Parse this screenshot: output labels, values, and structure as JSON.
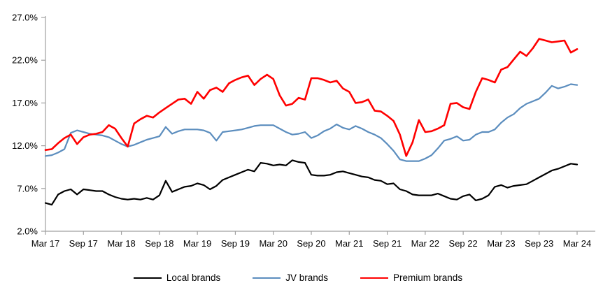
{
  "chart_data": {
    "type": "line",
    "title": "",
    "xlabel": "",
    "ylabel": "",
    "grid": false,
    "legend_position": "bottom",
    "ylim": [
      2.0,
      27.0
    ],
    "y_tick_step": 5.0,
    "y_tick_labels": [
      "2.0%",
      "7.0%",
      "12.0%",
      "17.0%",
      "22.0%",
      "27.0%"
    ],
    "x_tick_labels": [
      "Mar 17",
      "Sep 17",
      "Mar 18",
      "Sep 18",
      "Mar 19",
      "Sep 19",
      "Mar 20",
      "Sep 20",
      "Mar 21",
      "Sep 21",
      "Mar 22",
      "Sep 22",
      "Mar 23",
      "Sep 23",
      "Mar 24"
    ],
    "x_tick_every_n_points": 6,
    "x": [
      "Mar-17",
      "Apr-17",
      "May-17",
      "Jun-17",
      "Jul-17",
      "Aug-17",
      "Sep-17",
      "Oct-17",
      "Nov-17",
      "Dec-17",
      "Jan-18",
      "Feb-18",
      "Mar-18",
      "Apr-18",
      "May-18",
      "Jun-18",
      "Jul-18",
      "Aug-18",
      "Sep-18",
      "Oct-18",
      "Nov-18",
      "Dec-18",
      "Jan-19",
      "Feb-19",
      "Mar-19",
      "Apr-19",
      "May-19",
      "Jun-19",
      "Jul-19",
      "Aug-19",
      "Sep-19",
      "Oct-19",
      "Nov-19",
      "Dec-19",
      "Jan-20",
      "Feb-20",
      "Mar-20",
      "Apr-20",
      "May-20",
      "Jun-20",
      "Jul-20",
      "Aug-20",
      "Sep-20",
      "Oct-20",
      "Nov-20",
      "Dec-20",
      "Jan-21",
      "Feb-21",
      "Mar-21",
      "Apr-21",
      "May-21",
      "Jun-21",
      "Jul-21",
      "Aug-21",
      "Sep-21",
      "Oct-21",
      "Nov-21",
      "Dec-21",
      "Jan-22",
      "Feb-22",
      "Mar-22",
      "Apr-22",
      "May-22",
      "Jun-22",
      "Jul-22",
      "Aug-22",
      "Sep-22",
      "Oct-22",
      "Nov-22",
      "Dec-22",
      "Jan-23",
      "Feb-23",
      "Mar-23",
      "Apr-23",
      "May-23",
      "Jun-23",
      "Jul-23",
      "Aug-23",
      "Sep-23",
      "Oct-23",
      "Nov-23",
      "Dec-23",
      "Jan-24",
      "Feb-24",
      "Mar-24"
    ],
    "unit": "percent",
    "axis_color": "#a0a0a0",
    "series": [
      {
        "name": "Local brands",
        "color": "#000000",
        "stroke_width": 2.2,
        "values": [
          5.3,
          5.1,
          6.3,
          6.7,
          6.9,
          6.3,
          6.9,
          6.8,
          6.7,
          6.7,
          6.3,
          6.0,
          5.8,
          5.7,
          5.8,
          5.7,
          5.9,
          5.7,
          6.2,
          7.9,
          6.6,
          6.9,
          7.2,
          7.3,
          7.6,
          7.4,
          6.9,
          7.3,
          8.0,
          8.3,
          8.6,
          8.9,
          9.2,
          9.0,
          10.0,
          9.9,
          9.7,
          9.8,
          9.7,
          10.3,
          10.1,
          10.0,
          8.6,
          8.5,
          8.5,
          8.6,
          8.9,
          9.0,
          8.8,
          8.6,
          8.4,
          8.3,
          8.0,
          7.9,
          7.5,
          7.6,
          6.9,
          6.7,
          6.3,
          6.2,
          6.2,
          6.2,
          6.4,
          6.1,
          5.8,
          5.7,
          6.1,
          6.3,
          5.6,
          5.8,
          6.2,
          7.2,
          7.4,
          7.1,
          7.3,
          7.4,
          7.5,
          7.9,
          8.3,
          8.7,
          9.1,
          9.3,
          9.6,
          9.9,
          9.8
        ]
      },
      {
        "name": "JV brands",
        "color": "#5B8DBE",
        "stroke_width": 2.2,
        "values": [
          10.8,
          10.9,
          11.2,
          11.6,
          13.5,
          13.8,
          13.6,
          13.4,
          13.3,
          13.2,
          13.0,
          12.6,
          12.2,
          11.9,
          12.1,
          12.4,
          12.7,
          12.9,
          13.1,
          14.2,
          13.4,
          13.7,
          13.9,
          13.9,
          13.9,
          13.8,
          13.5,
          12.6,
          13.6,
          13.7,
          13.8,
          13.9,
          14.1,
          14.3,
          14.4,
          14.4,
          14.4,
          14.0,
          13.6,
          13.3,
          13.4,
          13.6,
          12.9,
          13.2,
          13.7,
          14.0,
          14.5,
          14.1,
          13.9,
          14.3,
          14.0,
          13.6,
          13.3,
          12.9,
          12.2,
          11.4,
          10.4,
          10.2,
          10.2,
          10.2,
          10.5,
          10.9,
          11.7,
          12.6,
          12.8,
          13.1,
          12.6,
          12.7,
          13.3,
          13.6,
          13.6,
          13.9,
          14.7,
          15.3,
          15.7,
          16.4,
          16.9,
          17.2,
          17.5,
          18.2,
          19.0,
          18.7,
          18.9,
          19.2,
          19.1
        ]
      },
      {
        "name": "Premium brands",
        "color": "#FF0000",
        "stroke_width": 2.6,
        "values": [
          11.5,
          11.6,
          12.3,
          12.9,
          13.3,
          12.2,
          13.0,
          13.3,
          13.4,
          13.6,
          14.4,
          14.0,
          12.9,
          11.9,
          14.6,
          15.1,
          15.5,
          15.3,
          15.9,
          16.4,
          16.9,
          17.4,
          17.5,
          16.9,
          18.3,
          17.5,
          18.5,
          18.8,
          18.3,
          19.3,
          19.7,
          20.0,
          20.2,
          19.1,
          19.8,
          20.3,
          19.8,
          17.9,
          16.7,
          16.9,
          17.6,
          17.4,
          19.9,
          19.9,
          19.7,
          19.4,
          19.6,
          18.7,
          18.3,
          17.0,
          17.1,
          17.4,
          16.1,
          16.0,
          15.5,
          14.9,
          13.3,
          10.8,
          12.4,
          15.0,
          13.6,
          13.7,
          14.0,
          14.4,
          16.9,
          17.0,
          16.5,
          16.3,
          18.3,
          19.9,
          19.7,
          19.4,
          20.9,
          21.2,
          22.1,
          23.0,
          22.5,
          23.4,
          24.5,
          24.3,
          24.1,
          24.2,
          24.3,
          22.9,
          23.3
        ]
      }
    ]
  }
}
